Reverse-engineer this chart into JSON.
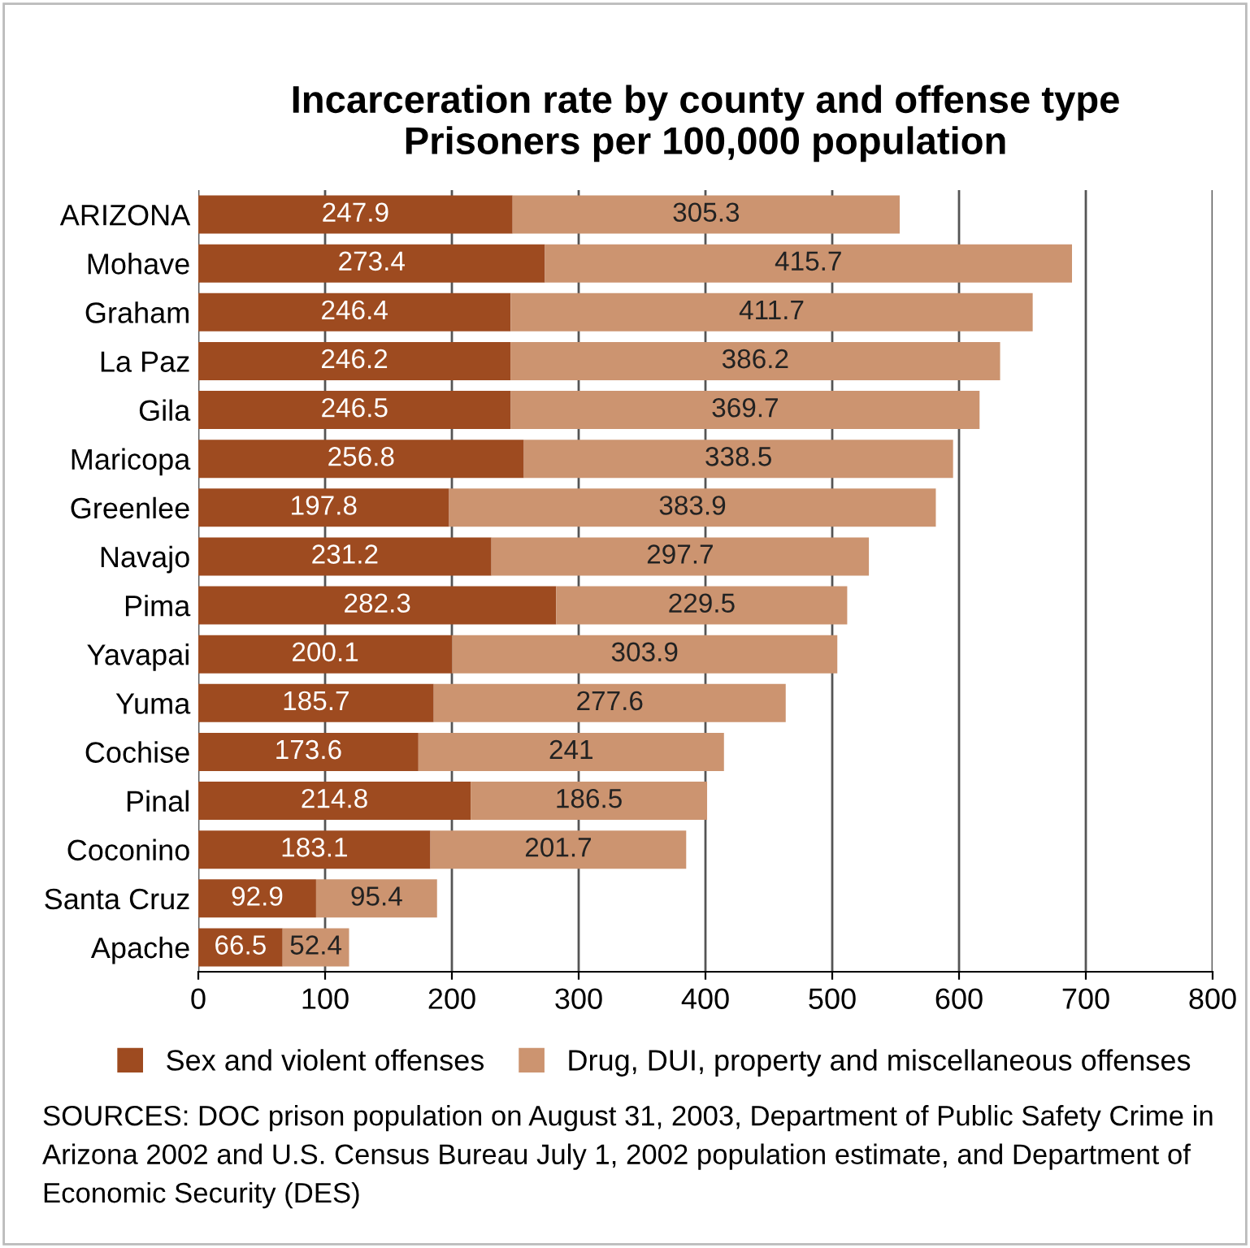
{
  "chart_data": {
    "type": "bar",
    "orientation": "horizontal",
    "stacked": true,
    "title": "Incarceration rate by county and offense type\nPrisoners per 100,000 population",
    "categories": [
      "ARIZONA",
      "Mohave",
      "Graham",
      "La Paz",
      "Gila",
      "Maricopa",
      "Greenlee",
      "Navajo",
      "Pima",
      "Yavapai",
      "Yuma",
      "Cochise",
      "Pinal",
      "Coconino",
      "Santa Cruz",
      "Apache"
    ],
    "series": [
      {
        "name": "Sex and violent offenses",
        "color": "#9e4b20",
        "values": [
          247.9,
          273.4,
          246.4,
          246.2,
          246.5,
          256.8,
          197.8,
          231.2,
          282.3,
          200.1,
          185.7,
          173.6,
          214.8,
          183.1,
          92.9,
          66.5
        ]
      },
      {
        "name": "Drug, DUI, property and miscellaneous offenses",
        "color": "#cc9470",
        "values": [
          305.3,
          415.7,
          411.7,
          386.2,
          369.7,
          338.5,
          383.9,
          297.7,
          229.5,
          303.9,
          277.6,
          241,
          186.5,
          201.7,
          95.4,
          52.4
        ]
      }
    ],
    "xlim": [
      0,
      800
    ],
    "xticks": [
      0,
      100,
      200,
      300,
      400,
      500,
      600,
      700,
      800
    ],
    "grid": "x",
    "legend": "bottom",
    "data_labels": true,
    "annotations": [
      "SOURCES: DOC prison population on August 31, 2003, Department of Public Safety Crime in Arizona 2002 and U.S. Census Bureau July 1, 2002 population estimate, and Department of Economic Security (DES)"
    ]
  }
}
